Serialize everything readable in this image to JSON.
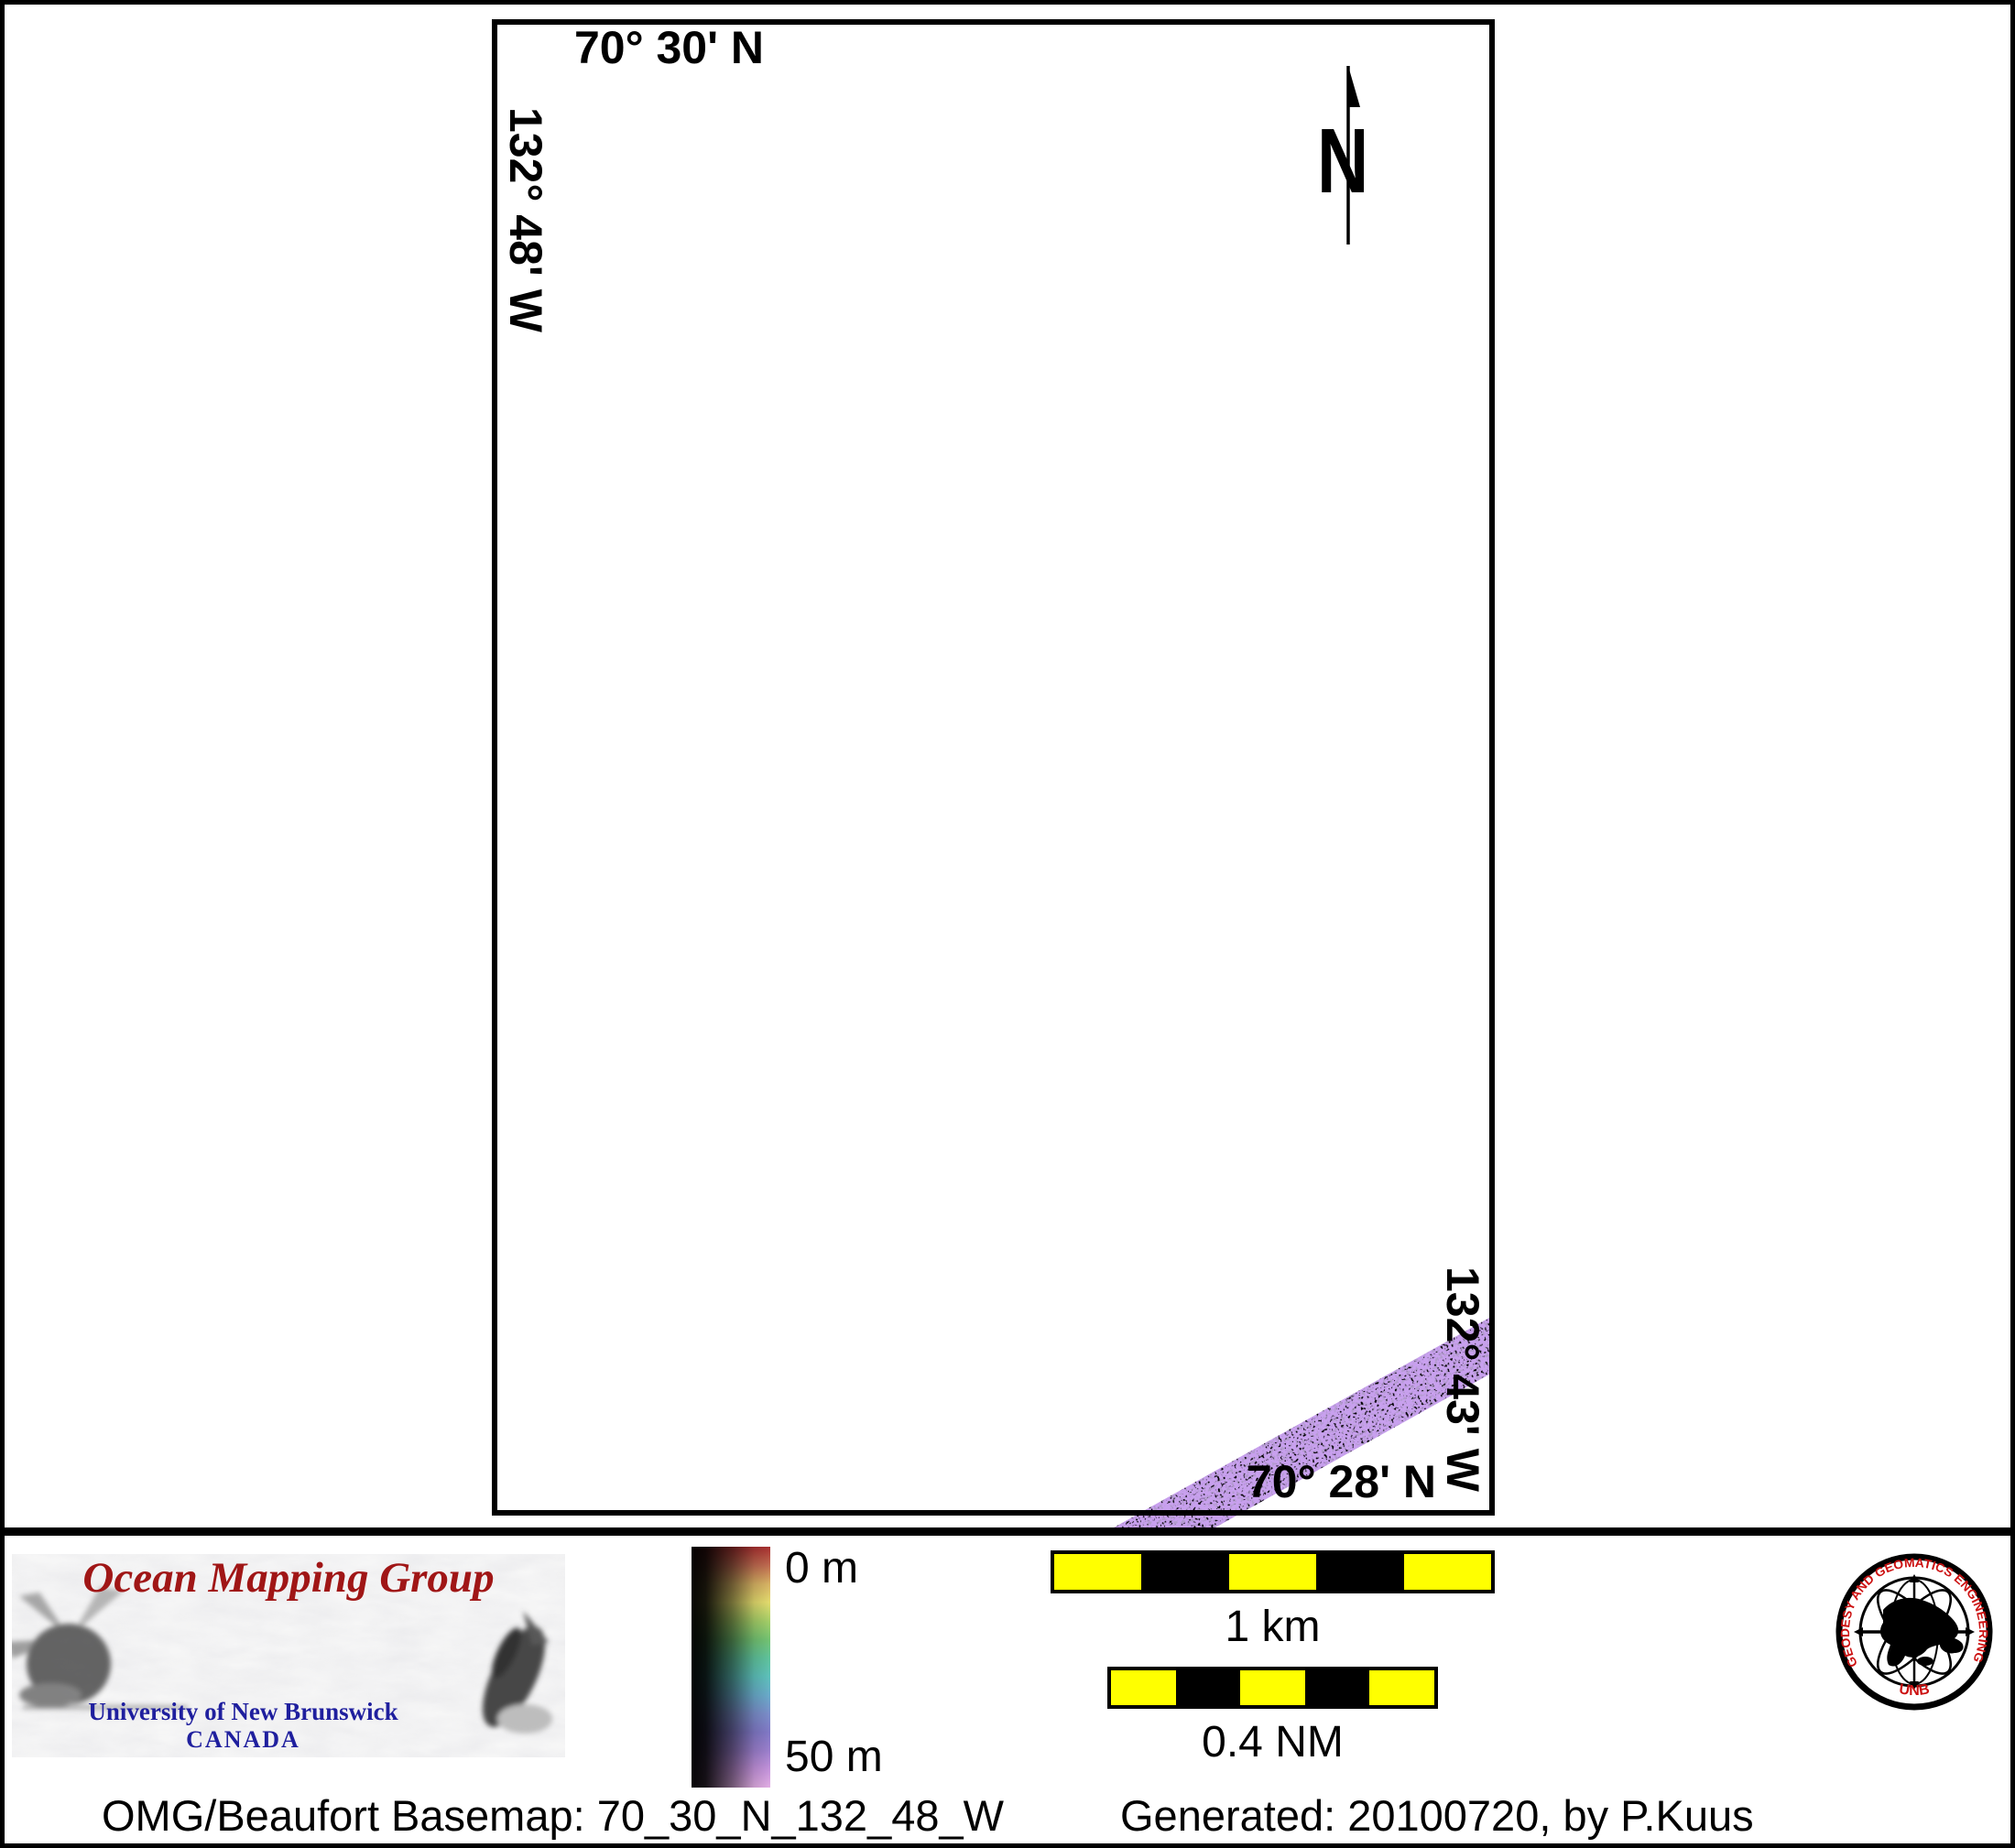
{
  "map": {
    "top_latitude": "70° 30' N",
    "left_longitude": "132° 48' W",
    "right_longitude": "132° 43' W",
    "bottom_latitude": "70° 28' N",
    "north_arrow_label": "N"
  },
  "legend": {
    "top_label": "0 m",
    "bottom_label": "50 m",
    "gradient_stops": [
      "#a83030",
      "#c06a50",
      "#d8b264",
      "#e4dc6e",
      "#a6cf68",
      "#74c472",
      "#60c49c",
      "#5ec2bc",
      "#6aaccb",
      "#7b8fcb",
      "#8179c7",
      "#9c80ce",
      "#c493dc",
      "#e3aee5"
    ]
  },
  "scale_bars": {
    "km": {
      "label": "1 km",
      "segments": 5
    },
    "nm": {
      "label": "0.4 NM",
      "segments": 5
    }
  },
  "branding": {
    "omg": {
      "title": "Ocean Mapping Group",
      "line1": "University of New Brunswick",
      "line2": "CANADA"
    },
    "seal": {
      "ring_text": "GEODESY AND GEOMATICS ENGINEERING",
      "bottom_text": "UNB"
    }
  },
  "footer": {
    "left": "OMG/Beaufort Basemap: 70_30_N_132_48_W",
    "right": "Generated: 20100720, by P.Kuus"
  },
  "colors": {
    "scale_yellow": "#ffff00",
    "scale_black": "#000000",
    "omg_red": "#a01616",
    "unb_blue": "#1f1f9e",
    "seal_red": "#cc1111",
    "swath_purple": "#c8a0ee"
  }
}
